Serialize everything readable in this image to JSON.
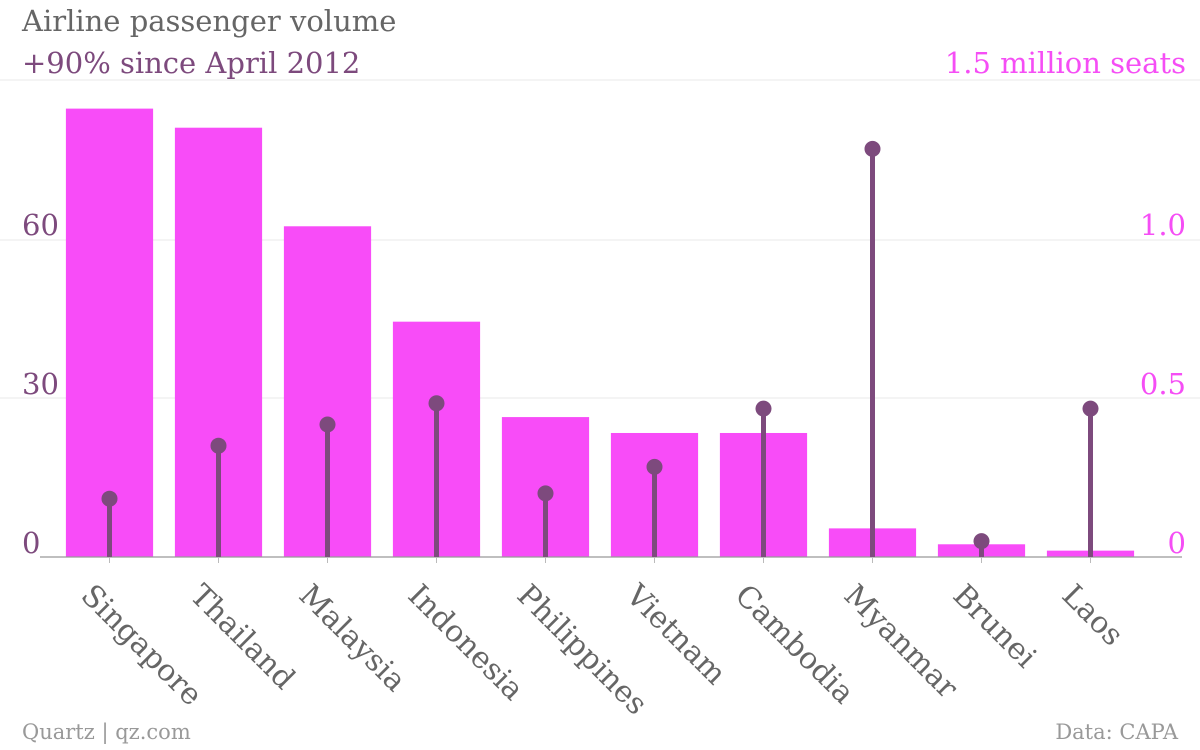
{
  "title": "Airline passenger volume",
  "subtitle_left": "+90% since April 2012",
  "subtitle_right": "1.5 million seats",
  "footer_source": "Quartz | qz.com",
  "footer_data": "Data: CAPA",
  "colors": {
    "bars": "#f84cf8",
    "lollipops": "#7d4a7d",
    "axis_text_left": "#7d4a7d",
    "axis_text_right": "#f54ef5",
    "category_text": "#666666",
    "grid": "#e8e8e8"
  },
  "chart_data": {
    "type": "bar",
    "categories": [
      "Singapore",
      "Thailand",
      "Malaysia",
      "Indonesia",
      "Philippines",
      "Vietnam",
      "Cambodia",
      "Myanmar",
      "Brunei",
      "Laos"
    ],
    "series": [
      {
        "axis": "right",
        "style": "bar",
        "values": [
          1.41,
          1.35,
          1.04,
          0.74,
          0.44,
          0.39,
          0.39,
          0.09,
          0.04,
          0.02
        ]
      },
      {
        "axis": "left",
        "style": "lollipop",
        "values": [
          11,
          21,
          25,
          29,
          12,
          17,
          28,
          77,
          3,
          28
        ]
      }
    ],
    "left_axis": {
      "ticks": [
        0,
        30,
        60
      ],
      "range": [
        0,
        90
      ]
    },
    "right_axis": {
      "ticks": [
        0,
        0.5,
        1.0
      ],
      "tick_labels": [
        "0",
        "0.5",
        "1.0"
      ],
      "range": [
        0,
        1.5
      ]
    },
    "grid": true,
    "legend": "none"
  }
}
